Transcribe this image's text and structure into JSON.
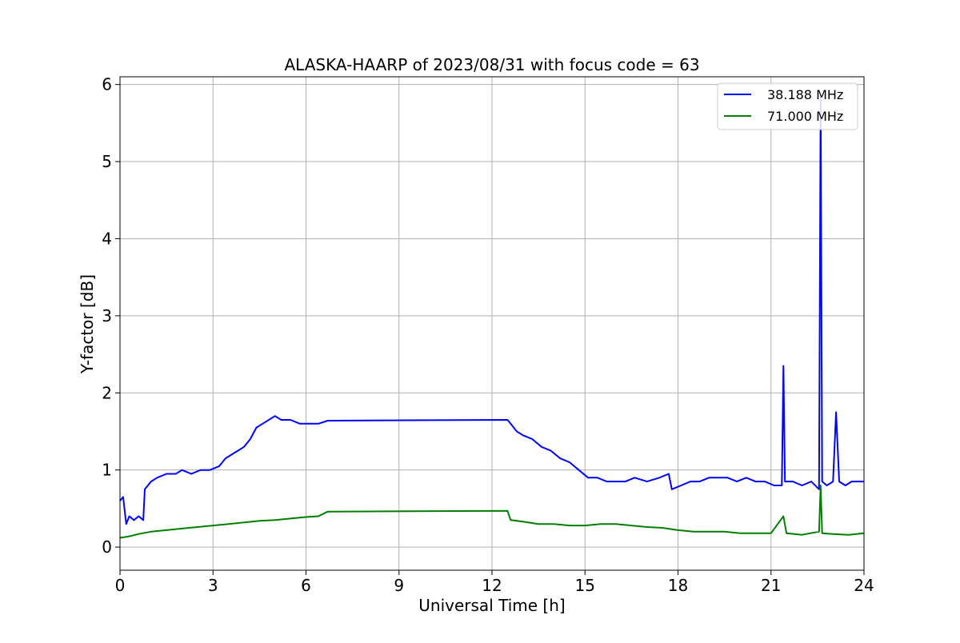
{
  "chart_data": {
    "type": "line",
    "title": "ALASKA-HAARP of 2023/08/31 with focus code = 63",
    "xlabel": "Universal Time [h]",
    "ylabel": "Y-factor [dB]",
    "xlim": [
      0,
      24
    ],
    "ylim": [
      -0.3,
      6.1
    ],
    "xticks": [
      0,
      3,
      6,
      9,
      12,
      15,
      18,
      21,
      24
    ],
    "yticks": [
      0,
      1,
      2,
      3,
      4,
      5,
      6
    ],
    "grid": true,
    "legend_position": "top-right",
    "series": [
      {
        "name": "38.188 MHz",
        "color": "#0000ff",
        "x": [
          0.0,
          0.1,
          0.2,
          0.3,
          0.45,
          0.6,
          0.75,
          0.8,
          0.9,
          1.0,
          1.2,
          1.5,
          1.8,
          2.0,
          2.3,
          2.6,
          2.9,
          3.2,
          3.4,
          3.6,
          3.8,
          4.0,
          4.2,
          4.4,
          4.6,
          4.8,
          5.0,
          5.2,
          5.5,
          5.8,
          6.1,
          6.4,
          6.7,
          12.5,
          12.6,
          12.8,
          13.0,
          13.3,
          13.6,
          13.9,
          14.2,
          14.5,
          14.8,
          15.1,
          15.4,
          15.7,
          16.0,
          16.3,
          16.6,
          17.0,
          17.4,
          17.7,
          17.8,
          18.1,
          18.4,
          18.7,
          19.0,
          19.3,
          19.6,
          19.9,
          20.2,
          20.5,
          20.8,
          21.1,
          21.35,
          21.4,
          21.45,
          21.7,
          22.0,
          22.3,
          22.55,
          22.6,
          22.65,
          22.8,
          23.0,
          23.1,
          23.2,
          23.4,
          23.6,
          23.8,
          24.0
        ],
        "y": [
          0.6,
          0.65,
          0.3,
          0.4,
          0.35,
          0.4,
          0.35,
          0.75,
          0.8,
          0.85,
          0.9,
          0.95,
          0.95,
          1.0,
          0.95,
          1.0,
          1.0,
          1.05,
          1.15,
          1.2,
          1.25,
          1.3,
          1.4,
          1.55,
          1.6,
          1.65,
          1.7,
          1.65,
          1.65,
          1.6,
          1.6,
          1.6,
          1.64,
          1.65,
          1.6,
          1.5,
          1.45,
          1.4,
          1.3,
          1.25,
          1.15,
          1.1,
          1.0,
          0.9,
          0.9,
          0.85,
          0.85,
          0.85,
          0.9,
          0.85,
          0.9,
          0.95,
          0.75,
          0.8,
          0.85,
          0.85,
          0.9,
          0.9,
          0.9,
          0.85,
          0.9,
          0.85,
          0.85,
          0.8,
          0.8,
          2.35,
          0.85,
          0.85,
          0.8,
          0.85,
          0.75,
          5.85,
          0.85,
          0.8,
          0.85,
          1.75,
          0.85,
          0.8,
          0.85,
          0.85,
          0.85
        ]
      },
      {
        "name": "71.000 MHz",
        "color": "#008000",
        "x": [
          0.0,
          0.3,
          0.6,
          1.0,
          1.5,
          2.0,
          2.5,
          3.0,
          3.5,
          4.0,
          4.5,
          5.0,
          5.5,
          6.0,
          6.4,
          6.7,
          12.5,
          12.6,
          13.0,
          13.5,
          14.0,
          14.5,
          15.0,
          15.5,
          16.0,
          16.5,
          17.0,
          17.5,
          18.0,
          18.5,
          19.0,
          19.5,
          20.0,
          20.5,
          21.0,
          21.4,
          21.5,
          22.0,
          22.55,
          22.6,
          22.65,
          23.0,
          23.5,
          24.0
        ],
        "y": [
          0.12,
          0.14,
          0.17,
          0.2,
          0.22,
          0.24,
          0.26,
          0.28,
          0.3,
          0.32,
          0.34,
          0.35,
          0.37,
          0.39,
          0.4,
          0.46,
          0.47,
          0.35,
          0.33,
          0.3,
          0.3,
          0.28,
          0.28,
          0.3,
          0.3,
          0.28,
          0.26,
          0.25,
          0.22,
          0.2,
          0.2,
          0.2,
          0.18,
          0.18,
          0.18,
          0.4,
          0.18,
          0.16,
          0.2,
          0.8,
          0.18,
          0.17,
          0.16,
          0.18
        ]
      }
    ]
  }
}
